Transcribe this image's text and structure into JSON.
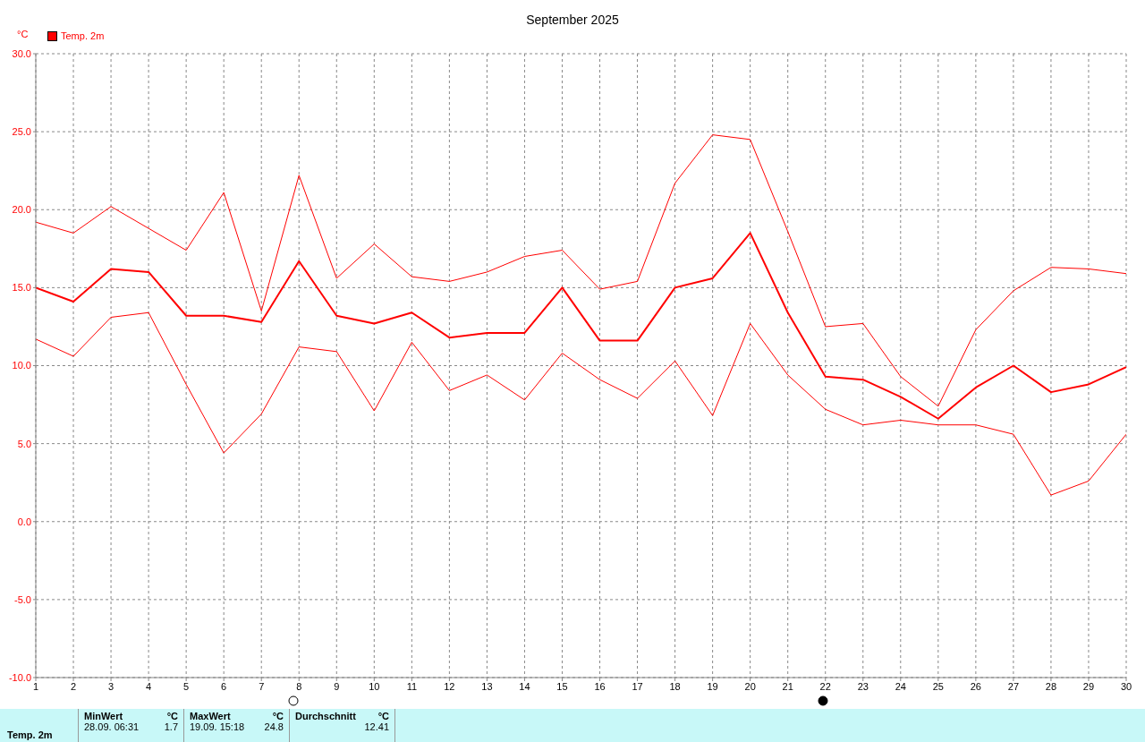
{
  "chart_data": {
    "type": "line",
    "title": "September 2025",
    "ylabel": "°C",
    "x": [
      1,
      2,
      3,
      4,
      5,
      6,
      7,
      8,
      9,
      10,
      11,
      12,
      13,
      14,
      15,
      16,
      17,
      18,
      19,
      20,
      21,
      22,
      23,
      24,
      25,
      26,
      27,
      28,
      29,
      30
    ],
    "series": [
      {
        "color": "#ff0000",
        "values": [
          19.2,
          18.5,
          20.2,
          18.8,
          17.4,
          21.1,
          13.5,
          22.2,
          15.6,
          17.8,
          15.7,
          15.4,
          16.0,
          17.0,
          17.4,
          14.9,
          15.4,
          21.7,
          24.8,
          24.5,
          18.6,
          12.5,
          12.7,
          9.3,
          7.4,
          12.3,
          14.8,
          16.3,
          16.2,
          15.9
        ]
      },
      {
        "name": "Temp. 2m",
        "color": "#ff0000",
        "values": [
          15.0,
          14.1,
          16.2,
          16.0,
          13.2,
          13.2,
          12.8,
          16.7,
          13.2,
          12.7,
          13.4,
          11.8,
          12.1,
          12.1,
          15.0,
          11.6,
          11.6,
          15.0,
          15.6,
          18.5,
          13.4,
          9.3,
          9.1,
          8.0,
          6.6,
          8.6,
          10.0,
          8.3,
          8.8,
          9.9
        ]
      },
      {
        "color": "#ff0000",
        "values": [
          11.7,
          10.6,
          13.1,
          13.4,
          8.8,
          4.4,
          6.9,
          11.2,
          10.9,
          7.1,
          11.5,
          8.4,
          9.4,
          7.8,
          10.8,
          9.1,
          7.9,
          10.3,
          6.8,
          12.7,
          9.4,
          7.2,
          6.2,
          6.5,
          6.2,
          6.2,
          5.6,
          1.7,
          2.6,
          5.6
        ]
      }
    ],
    "xlim": [
      1,
      30
    ],
    "xticks": [
      1,
      2,
      3,
      4,
      5,
      6,
      7,
      8,
      9,
      10,
      11,
      12,
      13,
      14,
      15,
      16,
      17,
      18,
      19,
      20,
      21,
      22,
      23,
      24,
      25,
      26,
      27,
      28,
      29,
      30
    ],
    "ylim": [
      -10,
      30
    ],
    "yticks": [
      {
        "value": -10,
        "label": "-10.0"
      },
      {
        "value": -5,
        "label": "-5.0"
      },
      {
        "value": 0,
        "label": "0.0"
      },
      {
        "value": 5,
        "label": "5.0"
      },
      {
        "value": 10,
        "label": "10.0"
      },
      {
        "value": 15,
        "label": "15.0"
      },
      {
        "value": 20,
        "label": "20.0"
      },
      {
        "value": 25,
        "label": "25.0"
      },
      {
        "value": 30,
        "label": "30.0"
      }
    ],
    "grid": true,
    "legend": "top left",
    "marker": "none",
    "line_style": "solid",
    "annotations": [
      "Temp. 2m",
      "MinWert",
      "°C",
      "28.09.  06:31",
      "1.7",
      "MaxWert",
      "°C",
      "19.09.  15:18",
      "24.8",
      "Durchschnitt",
      "°C",
      "12.41"
    ]
  }
}
